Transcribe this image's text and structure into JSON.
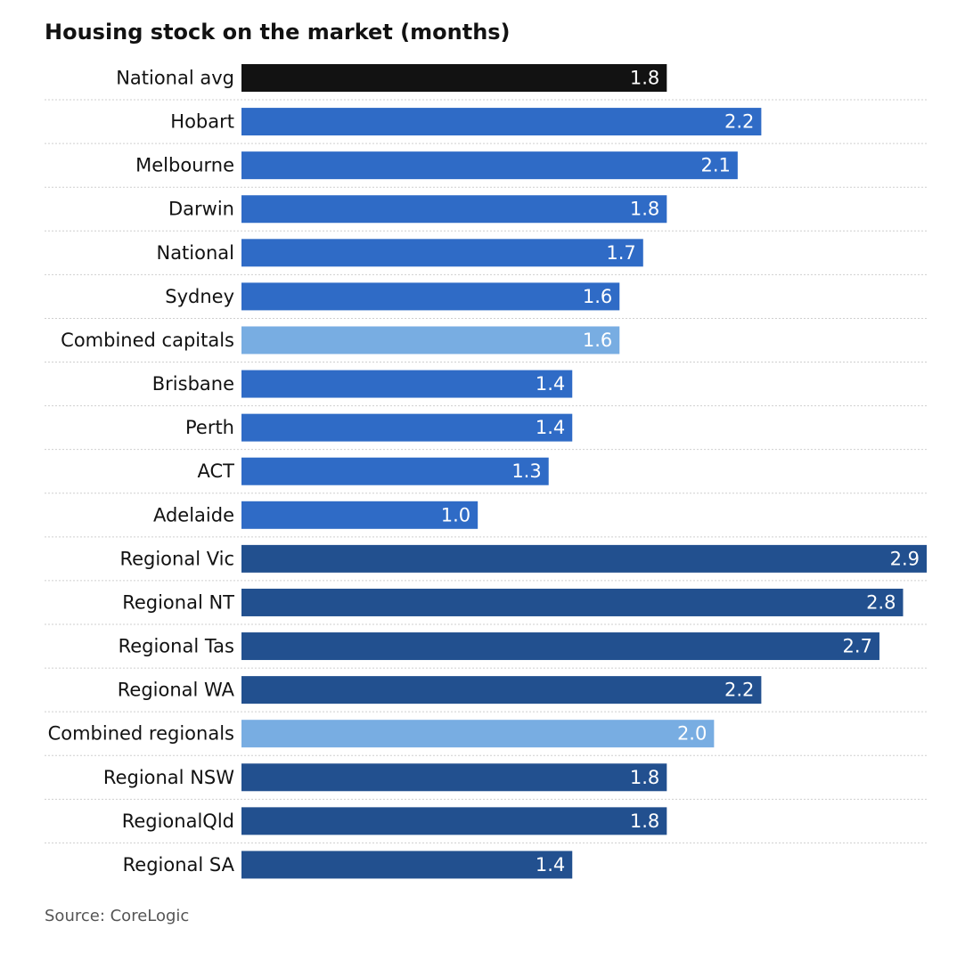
{
  "chart_data": {
    "type": "bar",
    "orientation": "horizontal",
    "title": "Housing stock on the market (months)",
    "source": "Source: CoreLogic",
    "xlim": [
      0,
      2.9
    ],
    "grid": "horizontal dotted separators",
    "categories": [
      "National avg",
      "Hobart",
      "Melbourne",
      "Darwin",
      "National",
      "Sydney",
      "Combined capitals",
      "Brisbane",
      "Perth",
      "ACT",
      "Adelaide",
      "Regional Vic",
      "Regional NT",
      "Regional Tas",
      "Regional WA",
      "Combined regionals",
      "Regional NSW",
      "RegionalQld",
      "Regional SA"
    ],
    "values": [
      1.8,
      2.2,
      2.1,
      1.8,
      1.7,
      1.6,
      1.6,
      1.4,
      1.4,
      1.3,
      1.0,
      2.9,
      2.8,
      2.7,
      2.2,
      2.0,
      1.8,
      1.8,
      1.4
    ],
    "value_labels": [
      "1.8",
      "2.2",
      "2.1",
      "1.8",
      "1.7",
      "1.6",
      "1.6",
      "1.4",
      "1.4",
      "1.3",
      "1.0",
      "2.9",
      "2.8",
      "2.7",
      "2.2",
      "2.0",
      "1.8",
      "1.8",
      "1.4"
    ],
    "groups": [
      "avg",
      "capital",
      "capital",
      "capital",
      "capital",
      "capital",
      "combined",
      "capital",
      "capital",
      "capital",
      "capital",
      "regional",
      "regional",
      "regional",
      "regional",
      "combined",
      "regional",
      "regional",
      "regional"
    ],
    "colors": {
      "avg": "#121212",
      "capital": "#2f6bc6",
      "combined": "#78ade2",
      "regional": "#22508f",
      "grid": "#cfcfcf"
    }
  }
}
